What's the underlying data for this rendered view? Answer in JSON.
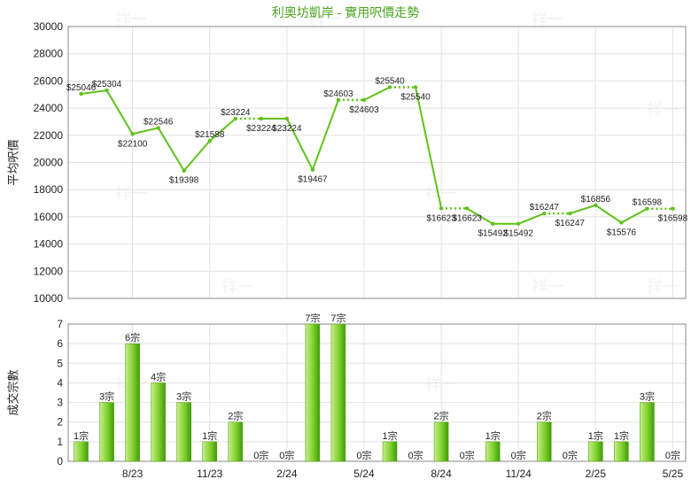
{
  "title": "利奧坊凱岸 - 實用呎價走勢",
  "watermark": "祥一",
  "colors": {
    "line": "#5ec21a",
    "bar_light": "#c8ef8a",
    "bar_dark": "#3f9b0c",
    "title": "#4aa31f",
    "grid": "#e2e2e2",
    "axis": "#888888",
    "text": "#222222"
  },
  "chart_data": [
    {
      "type": "line",
      "ylabel": "平均呎價",
      "ylim": [
        10000,
        30000
      ],
      "yticks": [
        10000,
        12000,
        14000,
        16000,
        18000,
        20000,
        22000,
        24000,
        26000,
        28000,
        30000
      ],
      "grid": true,
      "value_prefix": "$",
      "series": [
        {
          "values": [
            25046,
            25304,
            22100,
            22546,
            19398,
            21588,
            23224,
            23224,
            23224,
            19467,
            24603,
            24603,
            25540,
            25540,
            16623,
            16623,
            15492,
            15492,
            16247,
            16247,
            16856,
            15576,
            16598,
            16598
          ],
          "dotted_after": [
            false,
            false,
            false,
            false,
            false,
            false,
            true,
            false,
            false,
            false,
            true,
            false,
            true,
            false,
            true,
            false,
            false,
            false,
            true,
            false,
            false,
            false,
            true,
            false
          ]
        }
      ]
    },
    {
      "type": "bar",
      "ylabel": "成交宗數",
      "ylim": [
        0,
        7
      ],
      "yticks": [
        0,
        1,
        2,
        3,
        4,
        5,
        6,
        7
      ],
      "grid": true,
      "label_suffix": "宗",
      "x_ticks": [
        {
          "slot": 2,
          "label": "8/23"
        },
        {
          "slot": 5,
          "label": "11/23"
        },
        {
          "slot": 8,
          "label": "2/24"
        },
        {
          "slot": 11,
          "label": "5/24"
        },
        {
          "slot": 14,
          "label": "8/24"
        },
        {
          "slot": 17,
          "label": "11/24"
        },
        {
          "slot": 20,
          "label": "2/25"
        },
        {
          "slot": 23,
          "label": "5/25"
        }
      ],
      "values": [
        1,
        3,
        6,
        4,
        3,
        1,
        2,
        0,
        0,
        7,
        7,
        0,
        1,
        0,
        2,
        0,
        1,
        0,
        2,
        0,
        1,
        1,
        3,
        0
      ]
    }
  ]
}
